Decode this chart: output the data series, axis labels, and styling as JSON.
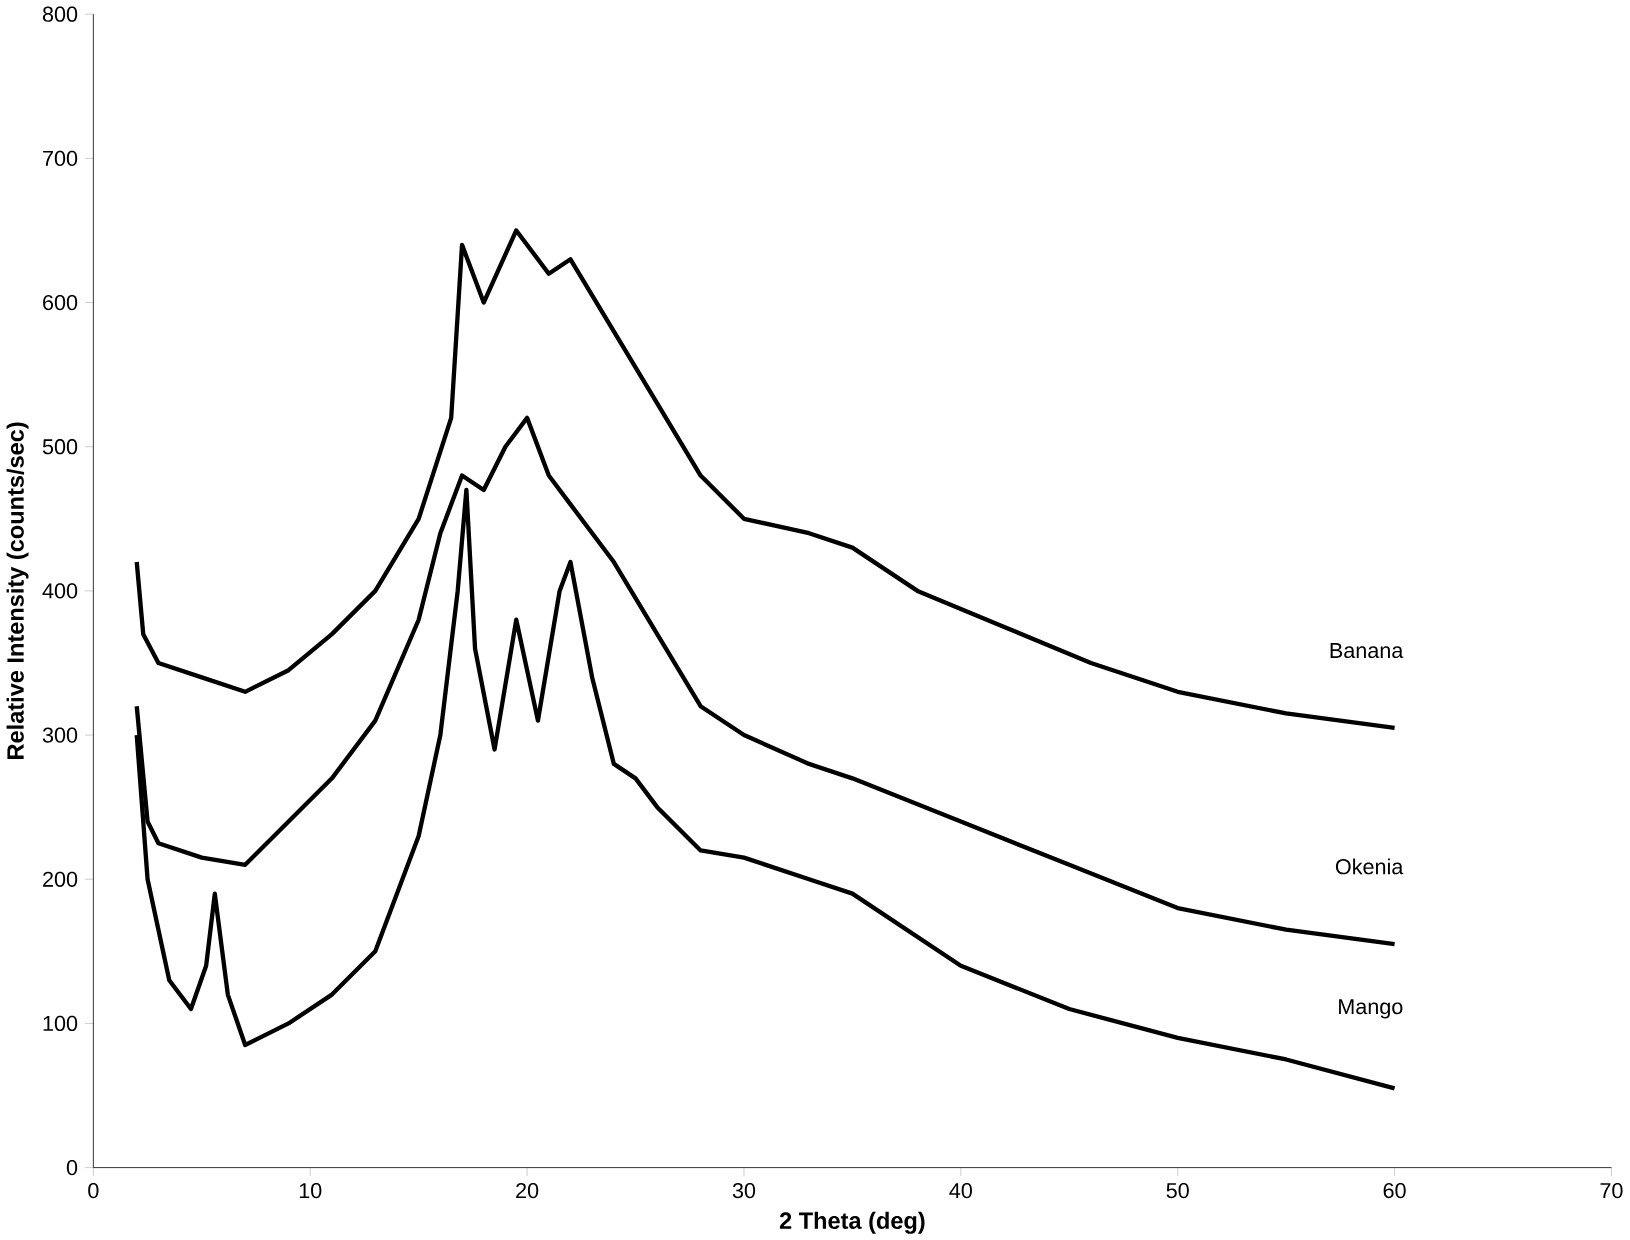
{
  "chart_data": {
    "type": "line",
    "xlabel": "2 Theta (deg)",
    "ylabel": "Relative Intensity (counts/sec)",
    "xlim": [
      0,
      70
    ],
    "ylim": [
      0,
      800
    ],
    "xticks": [
      0,
      10,
      20,
      30,
      40,
      50,
      60,
      70
    ],
    "yticks": [
      0,
      100,
      200,
      300,
      400,
      500,
      600,
      700,
      800
    ],
    "legend": false,
    "grid": false,
    "marker": "none",
    "line_style": "solid",
    "series": [
      {
        "name": "Banana",
        "color": "#000000",
        "x": [
          2,
          2.3,
          3,
          5,
          7,
          9,
          11,
          13,
          15,
          16.5,
          17,
          18,
          19.5,
          21,
          22,
          24,
          26,
          28,
          30,
          33,
          35,
          38,
          42,
          46,
          50,
          55,
          60
        ],
        "values": [
          420,
          370,
          350,
          340,
          330,
          345,
          370,
          400,
          450,
          520,
          640,
          600,
          650,
          620,
          630,
          580,
          530,
          480,
          450,
          440,
          430,
          400,
          375,
          350,
          330,
          315,
          305
        ]
      },
      {
        "name": "Okenia",
        "color": "#000000",
        "x": [
          2,
          2.5,
          3,
          5,
          7,
          9,
          11,
          13,
          15,
          16,
          17,
          18,
          19,
          20,
          21,
          22,
          24,
          26,
          28,
          30,
          33,
          35,
          40,
          45,
          50,
          55,
          60
        ],
        "values": [
          320,
          240,
          225,
          215,
          210,
          240,
          270,
          310,
          380,
          440,
          480,
          470,
          500,
          520,
          480,
          460,
          420,
          370,
          320,
          300,
          280,
          270,
          240,
          210,
          180,
          165,
          155
        ]
      },
      {
        "name": "Mango",
        "color": "#000000",
        "x": [
          2,
          2.5,
          3.5,
          4.5,
          5.2,
          5.6,
          6.2,
          7,
          9,
          11,
          13,
          15,
          16,
          16.8,
          17.2,
          17.6,
          18.5,
          19.5,
          20.5,
          21.5,
          22,
          23,
          24,
          25,
          26,
          28,
          30,
          33,
          35,
          40,
          45,
          50,
          55,
          60
        ],
        "values": [
          300,
          200,
          130,
          110,
          140,
          190,
          120,
          85,
          100,
          120,
          150,
          230,
          300,
          400,
          470,
          360,
          290,
          380,
          310,
          400,
          420,
          340,
          280,
          270,
          250,
          220,
          215,
          200,
          190,
          140,
          110,
          90,
          75,
          55
        ]
      }
    ]
  }
}
